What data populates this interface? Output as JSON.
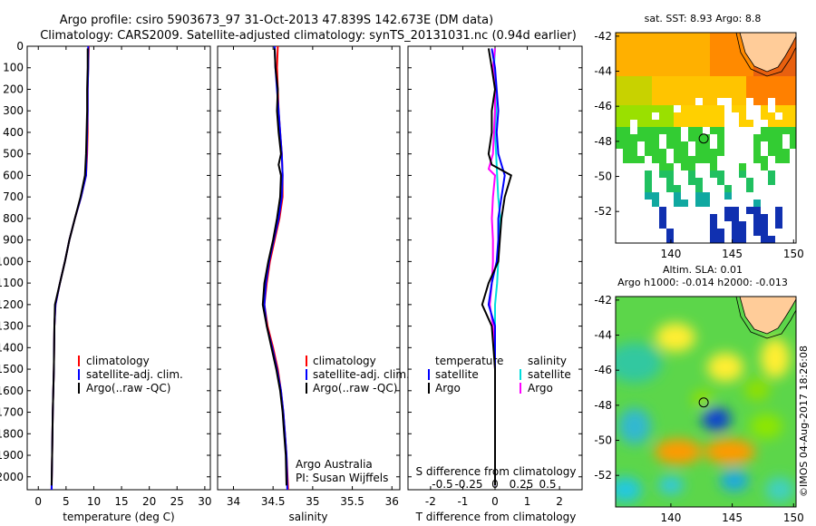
{
  "header": {
    "title_line1": "Argo profile: csiro 5903673_97 31-Oct-2013 47.839S 142.673E (DM data)",
    "title_line2": "Climatology: CARS2009. Satellite-adjusted climatology: synTS_20131031.nc (0.94d earlier)"
  },
  "depth_axis": {
    "ticks": [
      0,
      100,
      200,
      300,
      400,
      500,
      600,
      700,
      800,
      900,
      1000,
      1100,
      1200,
      1300,
      1400,
      1500,
      1600,
      1700,
      1800,
      1900,
      2000
    ],
    "tick_labels": [
      "0",
      "100",
      "200",
      "300",
      "400",
      "500",
      "600",
      "700",
      "800",
      "900",
      "1000",
      "1100",
      "1200",
      "1300",
      "1400",
      "1500",
      "1600",
      "1700",
      "1800",
      "1900",
      "2000"
    ],
    "range": [
      0,
      2060
    ]
  },
  "colors": {
    "climatology": "#ff0000",
    "satellite": "#0000ff",
    "argo": "#000000",
    "sal_satellite": "#00dddd",
    "sal_argo": "#ff00ff",
    "land": "#ffcc99"
  },
  "chart_data": [
    {
      "type": "line",
      "title": "",
      "xlabel": "temperature (deg C)",
      "ylabel": "",
      "xlim": [
        -2,
        31
      ],
      "ylim": [
        2060,
        0
      ],
      "x_ticks": [
        0,
        5,
        10,
        15,
        20,
        25,
        30
      ],
      "x_tick_labels": [
        "0",
        "5",
        "10",
        "15",
        "20",
        "25",
        "30"
      ],
      "legend": [
        "climatology",
        "satellite-adj. clim.",
        "Argo(..raw -QC)"
      ],
      "legend_position": "lower-right",
      "series": [
        {
          "name": "climatology",
          "points": [
            [
              9.1,
              0
            ],
            [
              9.0,
              100
            ],
            [
              8.9,
              200
            ],
            [
              8.9,
              300
            ],
            [
              8.9,
              400
            ],
            [
              8.8,
              500
            ],
            [
              8.6,
              600
            ],
            [
              7.7,
              700
            ],
            [
              6.6,
              800
            ],
            [
              5.6,
              900
            ],
            [
              4.8,
              1000
            ],
            [
              3.9,
              1100
            ],
            [
              3.1,
              1200
            ],
            [
              2.9,
              1300
            ],
            [
              2.8,
              1500
            ],
            [
              2.6,
              1700
            ],
            [
              2.5,
              1900
            ],
            [
              2.4,
              2060
            ]
          ]
        },
        {
          "name": "satellite-adj. clim.",
          "points": [
            [
              9.0,
              0
            ],
            [
              9.0,
              100
            ],
            [
              8.9,
              200
            ],
            [
              8.9,
              300
            ],
            [
              8.8,
              400
            ],
            [
              8.7,
              500
            ],
            [
              8.6,
              600
            ],
            [
              7.7,
              700
            ],
            [
              6.6,
              800
            ],
            [
              5.6,
              900
            ],
            [
              4.8,
              1000
            ],
            [
              3.9,
              1100
            ],
            [
              3.1,
              1200
            ],
            [
              2.9,
              1300
            ],
            [
              2.8,
              1500
            ],
            [
              2.6,
              1700
            ],
            [
              2.5,
              1900
            ],
            [
              2.4,
              2060
            ]
          ]
        },
        {
          "name": "Argo(..raw -QC)",
          "points": [
            [
              8.9,
              10
            ],
            [
              8.9,
              100
            ],
            [
              8.8,
              200
            ],
            [
              8.8,
              300
            ],
            [
              8.7,
              400
            ],
            [
              8.6,
              500
            ],
            [
              8.4,
              600
            ],
            [
              7.6,
              700
            ],
            [
              6.6,
              800
            ],
            [
              5.6,
              900
            ],
            [
              4.8,
              1000
            ],
            [
              3.9,
              1100
            ],
            [
              3.0,
              1200
            ],
            [
              2.9,
              1300
            ],
            [
              2.8,
              1500
            ],
            [
              2.6,
              1700
            ],
            [
              2.5,
              1900
            ],
            [
              2.4,
              2040
            ]
          ]
        }
      ]
    },
    {
      "type": "line",
      "title": "",
      "xlabel": "salinity",
      "ylabel": "",
      "xlim": [
        33.8,
        36.1
      ],
      "ylim": [
        2060,
        0
      ],
      "x_ticks": [
        34,
        34.5,
        35,
        35.5,
        36
      ],
      "x_tick_labels": [
        "34",
        "34.5",
        "35",
        "35.5",
        "36"
      ],
      "legend": [
        "climatology",
        "satellite-adj. clim.",
        "Argo(..raw -QC)"
      ],
      "legend_position": "lower-right",
      "annotation_line1": "Argo Australia",
      "annotation_line2": "PI: Susan Wijffels",
      "series": [
        {
          "name": "climatology",
          "points": [
            [
              34.56,
              0
            ],
            [
              34.55,
              100
            ],
            [
              34.56,
              200
            ],
            [
              34.57,
              300
            ],
            [
              34.59,
              400
            ],
            [
              34.61,
              500
            ],
            [
              34.62,
              600
            ],
            [
              34.62,
              700
            ],
            [
              34.58,
              800
            ],
            [
              34.52,
              900
            ],
            [
              34.46,
              1000
            ],
            [
              34.42,
              1100
            ],
            [
              34.39,
              1200
            ],
            [
              34.43,
              1300
            ],
            [
              34.5,
              1400
            ],
            [
              34.56,
              1500
            ],
            [
              34.6,
              1600
            ],
            [
              34.63,
              1700
            ],
            [
              34.65,
              1800
            ],
            [
              34.67,
              1900
            ],
            [
              34.69,
              2060
            ]
          ]
        },
        {
          "name": "satellite-adj. clim.",
          "points": [
            [
              34.52,
              0
            ],
            [
              34.53,
              100
            ],
            [
              34.55,
              200
            ],
            [
              34.57,
              300
            ],
            [
              34.59,
              400
            ],
            [
              34.61,
              500
            ],
            [
              34.62,
              600
            ],
            [
              34.61,
              700
            ],
            [
              34.57,
              800
            ],
            [
              34.51,
              900
            ],
            [
              34.45,
              1000
            ],
            [
              34.41,
              1100
            ],
            [
              34.39,
              1200
            ],
            [
              34.42,
              1300
            ],
            [
              34.49,
              1400
            ],
            [
              34.55,
              1500
            ],
            [
              34.6,
              1600
            ],
            [
              34.63,
              1700
            ],
            [
              34.65,
              1800
            ],
            [
              34.67,
              1900
            ],
            [
              34.68,
              2060
            ]
          ]
        },
        {
          "name": "Argo(..raw -QC)",
          "points": [
            [
              34.52,
              10
            ],
            [
              34.53,
              100
            ],
            [
              34.56,
              200
            ],
            [
              34.55,
              300
            ],
            [
              34.57,
              400
            ],
            [
              34.6,
              500
            ],
            [
              34.57,
              550
            ],
            [
              34.6,
              600
            ],
            [
              34.59,
              700
            ],
            [
              34.55,
              800
            ],
            [
              34.5,
              900
            ],
            [
              34.44,
              1000
            ],
            [
              34.39,
              1100
            ],
            [
              34.37,
              1200
            ],
            [
              34.42,
              1300
            ],
            [
              34.48,
              1400
            ],
            [
              34.54,
              1500
            ],
            [
              34.59,
              1600
            ],
            [
              34.62,
              1700
            ],
            [
              34.64,
              1800
            ],
            [
              34.66,
              1900
            ],
            [
              34.67,
              2040
            ]
          ]
        }
      ]
    },
    {
      "type": "line",
      "title": "",
      "xlabel": "T difference from climatology",
      "xlabel_top": "S difference from climatology",
      "ylabel": "",
      "xlim": [
        -2.7,
        2.7
      ],
      "ylim": [
        2060,
        0
      ],
      "x_ticks": [
        -2,
        -1,
        0,
        1,
        2
      ],
      "x_tick_labels": [
        "-2",
        "-1",
        "0",
        "1",
        "2"
      ],
      "s_ticks": [
        -0.5,
        -0.25,
        0,
        0.25,
        0.5
      ],
      "s_tick_labels": [
        "-0.5",
        "-0.25",
        "0",
        "0.25",
        "0.5"
      ],
      "legend": [
        "temperature",
        "satellite",
        "Argo",
        "salinity",
        "satellite",
        "Argo"
      ],
      "legend_position": "lower-center",
      "series": [
        {
          "name": "temperature satellite",
          "points": [
            [
              -0.1,
              10
            ],
            [
              0.0,
              100
            ],
            [
              0.05,
              200
            ],
            [
              0.1,
              300
            ],
            [
              0.05,
              400
            ],
            [
              0.1,
              500
            ],
            [
              0.3,
              600
            ],
            [
              0.2,
              700
            ],
            [
              0.1,
              800
            ],
            [
              0.1,
              900
            ],
            [
              0.05,
              1000
            ],
            [
              -0.1,
              1100
            ],
            [
              -0.2,
              1200
            ],
            [
              0.0,
              1300
            ],
            [
              0.0,
              1500
            ],
            [
              0.0,
              1800
            ],
            [
              0.0,
              2040
            ]
          ]
        },
        {
          "name": "temperature Argo",
          "points": [
            [
              -0.2,
              10
            ],
            [
              -0.1,
              100
            ],
            [
              0.0,
              200
            ],
            [
              -0.1,
              300
            ],
            [
              -0.1,
              400
            ],
            [
              -0.2,
              500
            ],
            [
              -0.1,
              550
            ],
            [
              0.5,
              600
            ],
            [
              0.3,
              700
            ],
            [
              0.2,
              800
            ],
            [
              0.15,
              900
            ],
            [
              0.1,
              1000
            ],
            [
              -0.2,
              1100
            ],
            [
              -0.4,
              1200
            ],
            [
              -0.1,
              1300
            ],
            [
              0.0,
              1500
            ],
            [
              0.0,
              1800
            ],
            [
              0.0,
              2040
            ]
          ]
        },
        {
          "name": "salinity satellite",
          "points": [
            [
              0.0,
              10
            ],
            [
              -0.01,
              100
            ],
            [
              0.0,
              200
            ],
            [
              0.01,
              300
            ],
            [
              0.0,
              400
            ],
            [
              0.01,
              500
            ],
            [
              0.02,
              600
            ],
            [
              0.03,
              700
            ],
            [
              0.05,
              800
            ],
            [
              0.04,
              900
            ],
            [
              0.03,
              1000
            ],
            [
              0.02,
              1100
            ],
            [
              0.0,
              1200
            ],
            [
              0.0,
              1300
            ],
            [
              0.0,
              1500
            ],
            [
              0.0,
              1800
            ],
            [
              0.0,
              2040
            ]
          ]
        },
        {
          "name": "salinity Argo",
          "points": [
            [
              0.0,
              10
            ],
            [
              -0.02,
              100
            ],
            [
              0.0,
              200
            ],
            [
              0.0,
              300
            ],
            [
              -0.01,
              400
            ],
            [
              -0.02,
              500
            ],
            [
              -0.06,
              570
            ],
            [
              0.0,
              600
            ],
            [
              -0.02,
              700
            ],
            [
              -0.03,
              800
            ],
            [
              -0.02,
              900
            ],
            [
              -0.02,
              1000
            ],
            [
              -0.03,
              1100
            ],
            [
              -0.05,
              1200
            ],
            [
              -0.02,
              1300
            ],
            [
              0.0,
              1500
            ],
            [
              0.0,
              1800
            ],
            [
              0.0,
              2040
            ]
          ]
        }
      ]
    },
    {
      "type": "heatmap",
      "title": "sat. SST: 8.93 Argo: 8.8",
      "xlim": [
        135.5,
        150.2
      ],
      "ylim": [
        -53.8,
        -41.8
      ],
      "x_ticks": [
        140,
        145,
        150
      ],
      "x_tick_labels": [
        "140",
        "145",
        "150"
      ],
      "y_ticks": [
        -42,
        -44,
        -46,
        -48,
        -50,
        -52
      ],
      "y_tick_labels": [
        "-42",
        "-44",
        "-46",
        "-48",
        "-50",
        "-52"
      ],
      "argo_position": [
        142.673,
        -47.839
      ],
      "colormap": "jet"
    },
    {
      "type": "heatmap",
      "title_line1": "Altim. SLA: 0.01",
      "title_line2": "Argo h1000: -0.014 h2000: -0.013",
      "xlim": [
        135.5,
        150.2
      ],
      "ylim": [
        -53.8,
        -41.8
      ],
      "x_ticks": [
        140,
        145,
        150
      ],
      "x_tick_labels": [
        "140",
        "145",
        "150"
      ],
      "y_ticks": [
        -42,
        -44,
        -46,
        -48,
        -50,
        -52
      ],
      "y_tick_labels": [
        "-42",
        "-44",
        "-46",
        "-48",
        "-50",
        "-52"
      ],
      "argo_position": [
        142.673,
        -47.839
      ],
      "colormap": "jet"
    }
  ],
  "watermark": "©IMOS 04-Aug-2017 18:26:08"
}
